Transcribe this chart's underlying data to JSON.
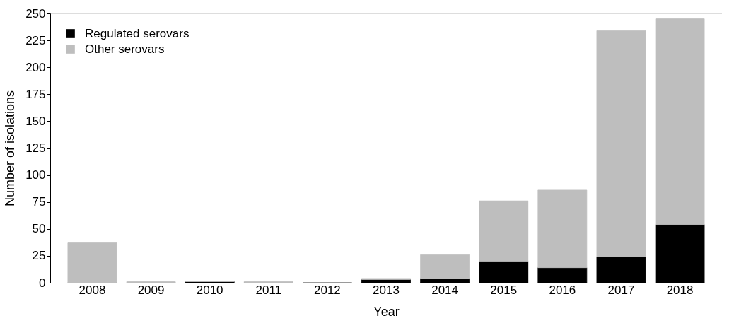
{
  "chart_data": {
    "type": "bar",
    "xlabel": "Year",
    "ylabel": "Number of isolations",
    "categories": [
      "2008",
      "2009",
      "2010",
      "2011",
      "2012",
      "2013",
      "2014",
      "2015",
      "2016",
      "2017",
      "2018"
    ],
    "stacked": true,
    "series": [
      {
        "name": "Regulated serovars",
        "color": "#000000",
        "values": [
          0,
          0,
          1,
          0,
          0,
          3,
          4,
          20,
          14,
          24,
          54
        ]
      },
      {
        "name": "Other serovars",
        "color": "#bebebe",
        "values": [
          37,
          1,
          0,
          1,
          0,
          1,
          22,
          56,
          72,
          210,
          191
        ]
      }
    ],
    "ylim": [
      0,
      250
    ],
    "yticks": [
      0,
      25,
      50,
      75,
      100,
      125,
      150,
      175,
      200,
      225,
      250
    ],
    "grid": false,
    "legend": "top left"
  }
}
